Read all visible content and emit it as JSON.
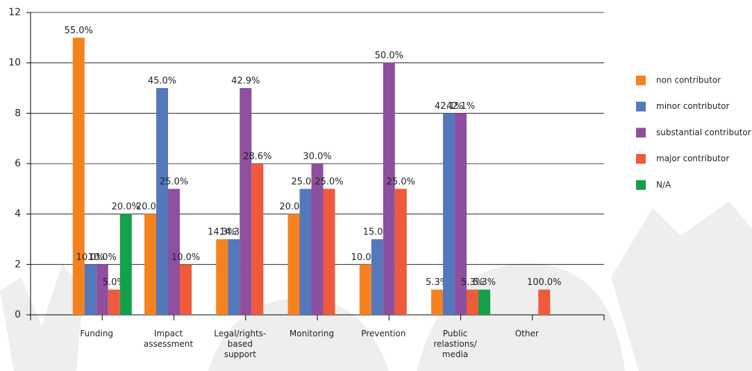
{
  "chart_data": {
    "type": "bar",
    "categories": [
      "Funding",
      "Impact assessment",
      "Legal/rights-based support",
      "Monitoring",
      "Prevention",
      "Public relastions/ media",
      "Other"
    ],
    "series": [
      {
        "name": "non contributor",
        "color": "#f5821f",
        "values": [
          11,
          4,
          3,
          4,
          2,
          1,
          null
        ],
        "value_labels": [
          "55.0%",
          "20.0%",
          "14.3%",
          "20.0%",
          "10.0%",
          "5.3%",
          null
        ]
      },
      {
        "name": "minor contributor",
        "color": "#5577bb",
        "values": [
          2,
          9,
          3,
          5,
          3,
          8,
          null
        ],
        "value_labels": [
          "10.0%",
          "45.0%",
          "14.3%",
          "25.0%",
          "15.0%",
          "42.1%",
          null
        ]
      },
      {
        "name": "substantial contributor",
        "color": "#8e4f9e",
        "values": [
          2,
          5,
          9,
          6,
          10,
          8,
          null
        ],
        "value_labels": [
          "10.0%",
          "25.0%",
          "42.9%",
          "30.0%",
          "50.0%",
          "42.1%",
          null
        ]
      },
      {
        "name": "major contributor",
        "color": "#ef5a3c",
        "values": [
          1,
          2,
          6,
          5,
          5,
          1,
          1
        ],
        "value_labels": [
          "5.0%",
          "10.0%",
          "28.6%",
          "25.0%",
          "25.0%",
          "5.3%",
          "100.0%"
        ]
      },
      {
        "name": "N/A",
        "color": "#13a049",
        "values": [
          4,
          null,
          null,
          null,
          null,
          1,
          null
        ],
        "value_labels": [
          "20.0%",
          null,
          null,
          null,
          null,
          "5.3%",
          null
        ]
      }
    ],
    "ylim": [
      0,
      12
    ],
    "yticks": [
      0,
      2,
      4,
      6,
      8,
      10,
      12
    ],
    "grid": true,
    "legend": "right"
  }
}
